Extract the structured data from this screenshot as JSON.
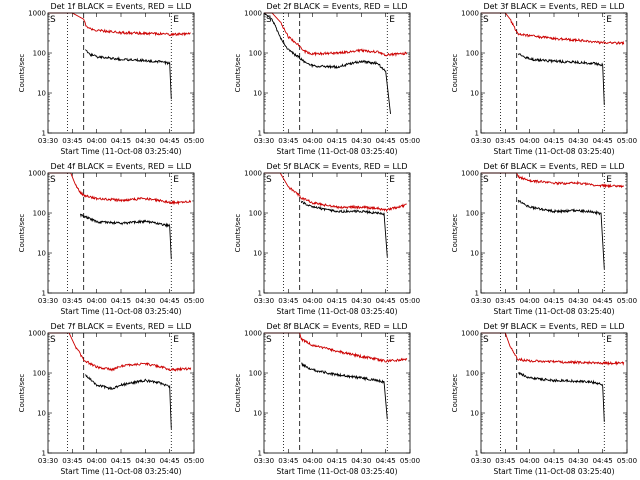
{
  "colors": {
    "events": "#000000",
    "lld": "#cc0000",
    "axis": "#000000",
    "background": "#ffffff"
  },
  "common": {
    "ylabel": "Counts/sec",
    "xlabel": "Start Time (11-Oct-08 03:25:40)",
    "x_ticks": [
      "03:30",
      "03:45",
      "04:00",
      "04:15",
      "04:30",
      "04:45",
      "05:00"
    ],
    "y_ticks": [
      "1",
      "10",
      "100",
      "1000"
    ],
    "marker_s": "S",
    "marker_e": "E"
  },
  "chart_data": [
    {
      "type": "line",
      "title": "Det 1f BLACK = Events, RED = LLD",
      "xlim": [
        "03:30",
        "05:00"
      ],
      "ylim": [
        1,
        1000
      ],
      "yscale": "log",
      "vlines": {
        "dotted": [
          "03:42",
          "04:46"
        ],
        "dashed": "03:52"
      },
      "x": [
        "03:30",
        "03:38",
        "03:45",
        "03:52",
        "03:53",
        "03:55",
        "04:00",
        "04:15",
        "04:30",
        "04:40",
        "04:45",
        "04:46"
      ],
      "series": [
        {
          "name": "Events",
          "values": [
            null,
            null,
            null,
            null,
            120,
            95,
            80,
            70,
            65,
            60,
            55,
            7
          ]
        },
        {
          "name": "LLD",
          "values": [
            1000,
            1000,
            1000,
            700,
            520,
            430,
            370,
            320,
            310,
            300,
            290,
            290
          ],
          "extend_to": "04:58",
          "end_value": 300
        }
      ]
    },
    {
      "type": "line",
      "title": "Det 2f BLACK = Events, RED = LLD",
      "xlim": [
        "03:30",
        "05:00"
      ],
      "ylim": [
        1,
        1000
      ],
      "yscale": "log",
      "vlines": {
        "dotted": [
          "03:42",
          "04:46"
        ],
        "dashed": "03:52"
      },
      "x": [
        "03:30",
        "03:35",
        "03:40",
        "03:45",
        "03:52",
        "03:55",
        "04:00",
        "04:15",
        "04:30",
        "04:40",
        "04:45",
        "04:48"
      ],
      "series": [
        {
          "name": "Events",
          "values": [
            1000,
            700,
            250,
            120,
            75,
            60,
            48,
            45,
            62,
            55,
            35,
            3
          ]
        },
        {
          "name": "LLD",
          "values": [
            1000,
            1000,
            600,
            250,
            150,
            110,
            95,
            100,
            115,
            105,
            90,
            90
          ],
          "extend_to": "04:58",
          "end_value": 100
        }
      ]
    },
    {
      "type": "line",
      "title": "Det 3f BLACK = Events, RED = LLD",
      "xlim": [
        "03:30",
        "05:00"
      ],
      "ylim": [
        1,
        1000
      ],
      "yscale": "log",
      "vlines": {
        "dotted": [
          "03:42",
          "04:46"
        ],
        "dashed": "03:52"
      },
      "x": [
        "03:30",
        "03:45",
        "03:48",
        "03:52",
        "03:53",
        "04:00",
        "04:15",
        "04:30",
        "04:40",
        "04:45",
        "04:46"
      ],
      "series": [
        {
          "name": "Events",
          "values": [
            null,
            null,
            null,
            null,
            95,
            70,
            62,
            58,
            55,
            50,
            5
          ]
        },
        {
          "name": "LLD",
          "values": [
            1000,
            1000,
            700,
            330,
            300,
            270,
            230,
            210,
            190,
            180,
            180
          ],
          "extend_to": "04:58",
          "end_value": 175
        }
      ]
    },
    {
      "type": "line",
      "title": "Det 4f BLACK = Events, RED = LLD",
      "xlim": [
        "03:30",
        "05:00"
      ],
      "ylim": [
        1,
        1000
      ],
      "yscale": "log",
      "vlines": {
        "dotted": [
          "03:42",
          "04:46"
        ],
        "dashed": "03:52"
      },
      "x": [
        "03:30",
        "03:44",
        "03:47",
        "03:50",
        "03:53",
        "04:00",
        "04:15",
        "04:30",
        "04:40",
        "04:45",
        "04:46"
      ],
      "series": [
        {
          "name": "Events",
          "values": [
            null,
            null,
            null,
            90,
            80,
            60,
            55,
            62,
            52,
            48,
            7
          ]
        },
        {
          "name": "LLD",
          "values": [
            1000,
            1000,
            500,
            320,
            270,
            230,
            210,
            230,
            200,
            180,
            180
          ],
          "extend_to": "04:58",
          "end_value": 190
        }
      ]
    },
    {
      "type": "line",
      "title": "Det 5f BLACK = Events, RED = LLD",
      "xlim": [
        "03:30",
        "05:00"
      ],
      "ylim": [
        1,
        1000
      ],
      "yscale": "log",
      "vlines": {
        "dotted": [
          "03:42",
          "04:46"
        ],
        "dashed": "03:52"
      },
      "x": [
        "03:30",
        "03:40",
        "03:45",
        "03:52",
        "03:53",
        "04:00",
        "04:15",
        "04:30",
        "04:40",
        "04:44",
        "04:46"
      ],
      "series": [
        {
          "name": "Events",
          "values": [
            null,
            null,
            null,
            null,
            190,
            140,
            110,
            110,
            100,
            95,
            8
          ]
        },
        {
          "name": "LLD",
          "values": [
            1000,
            1000,
            450,
            270,
            240,
            180,
            140,
            140,
            130,
            120,
            120
          ],
          "extend_to": "04:58",
          "end_value": 160
        }
      ]
    },
    {
      "type": "line",
      "title": "Det 6f BLACK = Events, RED = LLD",
      "xlim": [
        "03:30",
        "05:00"
      ],
      "ylim": [
        1,
        1000
      ],
      "yscale": "log",
      "vlines": {
        "dotted": [
          "03:42",
          "04:46"
        ],
        "dashed": "03:52"
      },
      "x": [
        "03:30",
        "03:52",
        "03:53",
        "04:00",
        "04:15",
        "04:30",
        "04:40",
        "04:44",
        "04:46"
      ],
      "series": [
        {
          "name": "Events",
          "values": [
            null,
            null,
            200,
            140,
            110,
            115,
            105,
            95,
            4
          ]
        },
        {
          "name": "LLD",
          "values": [
            1000,
            1000,
            800,
            650,
            550,
            560,
            500,
            480,
            480
          ],
          "extend_to": "04:58",
          "end_value": 470
        }
      ]
    },
    {
      "type": "line",
      "title": "Det 7f BLACK = Events, RED = LLD",
      "xlim": [
        "03:30",
        "05:00"
      ],
      "ylim": [
        1,
        1000
      ],
      "yscale": "log",
      "vlines": {
        "dotted": [
          "03:42",
          "04:46"
        ],
        "dashed": "03:52"
      },
      "x": [
        "03:30",
        "03:43",
        "03:47",
        "03:52",
        "03:53",
        "04:00",
        "04:10",
        "04:15",
        "04:30",
        "04:40",
        "04:45",
        "04:46"
      ],
      "series": [
        {
          "name": "Events",
          "values": [
            null,
            null,
            null,
            null,
            90,
            50,
            40,
            50,
            65,
            55,
            45,
            4
          ]
        },
        {
          "name": "LLD",
          "values": [
            1000,
            1000,
            450,
            220,
            200,
            140,
            120,
            150,
            170,
            140,
            120,
            120
          ],
          "extend_to": "04:58",
          "end_value": 130
        }
      ]
    },
    {
      "type": "line",
      "title": "Det 8f BLACK = Events, RED = LLD",
      "xlim": [
        "03:30",
        "05:00"
      ],
      "ylim": [
        1,
        1000
      ],
      "yscale": "log",
      "vlines": {
        "dotted": [
          "03:42",
          "04:46"
        ],
        "dashed": "03:52"
      },
      "x": [
        "03:30",
        "03:52",
        "03:53",
        "04:00",
        "04:15",
        "04:30",
        "04:40",
        "04:44",
        "04:46"
      ],
      "series": [
        {
          "name": "Events",
          "values": [
            null,
            null,
            170,
            120,
            90,
            75,
            65,
            60,
            7
          ]
        },
        {
          "name": "LLD",
          "values": [
            1000,
            1000,
            700,
            500,
            350,
            260,
            220,
            200,
            200
          ],
          "extend_to": "04:58",
          "end_value": 220
        }
      ]
    },
    {
      "type": "line",
      "title": "Det 9f BLACK = Events, RED = LLD",
      "xlim": [
        "03:30",
        "05:00"
      ],
      "ylim": [
        1,
        1000
      ],
      "yscale": "log",
      "vlines": {
        "dotted": [
          "03:42",
          "04:46"
        ],
        "dashed": "03:52"
      },
      "x": [
        "03:30",
        "03:45",
        "03:48",
        "03:52",
        "03:53",
        "04:00",
        "04:15",
        "04:30",
        "04:40",
        "04:45",
        "04:46"
      ],
      "series": [
        {
          "name": "Events",
          "values": [
            null,
            null,
            null,
            null,
            100,
            75,
            65,
            62,
            58,
            50,
            6
          ]
        },
        {
          "name": "LLD",
          "values": [
            1000,
            1000,
            450,
            240,
            220,
            200,
            190,
            185,
            180,
            175,
            175
          ],
          "extend_to": "04:58",
          "end_value": 175
        }
      ]
    }
  ]
}
